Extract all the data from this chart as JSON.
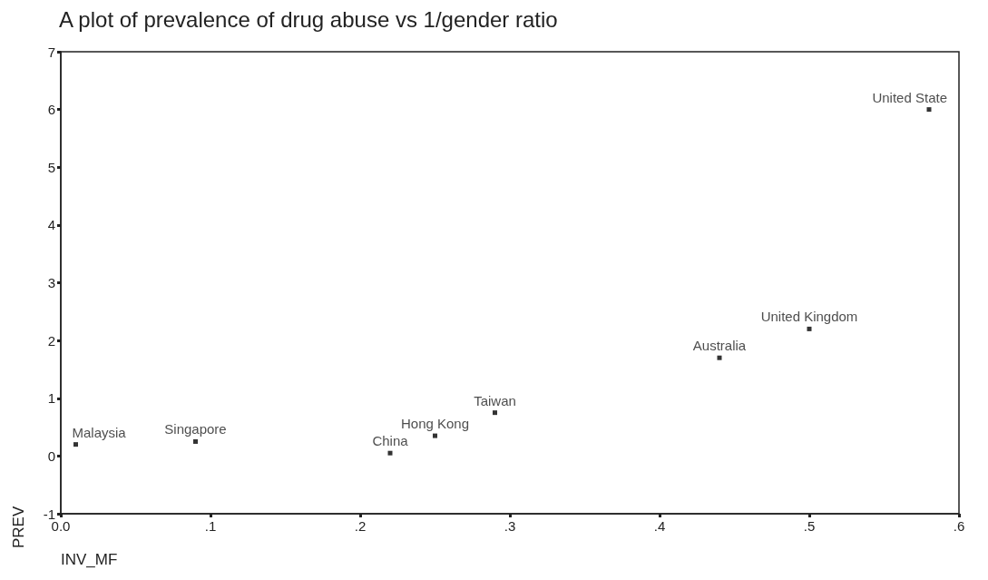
{
  "chart_data": {
    "type": "scatter",
    "title": "A plot of prevalence of drug abuse vs 1/gender ratio",
    "xlabel": "INV_MF",
    "ylabel": "PREV",
    "x": [
      0.01,
      0.09,
      0.22,
      0.25,
      0.29,
      0.44,
      0.5,
      0.58
    ],
    "values": [
      0.2,
      0.25,
      0.05,
      0.35,
      0.75,
      1.7,
      2.2,
      6.0
    ],
    "color": "#000000",
    "marker": "square",
    "grid": false,
    "xlim": [
      0,
      0.6
    ],
    "xticks": [
      {
        "value": 0,
        "label": "0.0"
      },
      {
        "value": 0.1,
        "label": ".1"
      },
      {
        "value": 0.2,
        "label": ".2"
      },
      {
        "value": 0.3,
        "label": ".3"
      },
      {
        "value": 0.4,
        "label": ".4"
      },
      {
        "value": 0.5,
        "label": ".5"
      },
      {
        "value": 0.6,
        "label": ".6"
      }
    ],
    "ylim": [
      -1,
      7
    ],
    "yticks": [
      -1,
      0,
      1,
      2,
      3,
      4,
      5,
      6,
      7
    ],
    "annotations": [
      {
        "text": "Malaysia",
        "x": 0.01,
        "y": 0.2
      },
      {
        "text": "Singapore",
        "x": 0.09,
        "y": 0.25
      },
      {
        "text": "China",
        "x": 0.22,
        "y": 0.05
      },
      {
        "text": "Hong Kong",
        "x": 0.25,
        "y": 0.35
      },
      {
        "text": "Taiwan",
        "x": 0.29,
        "y": 0.75
      },
      {
        "text": "Australia",
        "x": 0.44,
        "y": 1.7
      },
      {
        "text": "United Kingdom",
        "x": 0.5,
        "y": 2.2
      },
      {
        "text": "United State",
        "x": 0.58,
        "y": 6.0
      }
    ]
  }
}
